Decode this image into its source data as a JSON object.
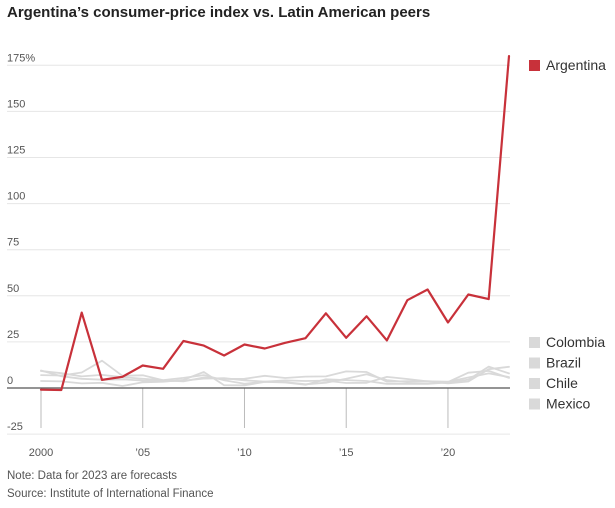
{
  "title": "Argentina’s consumer-price index vs. Latin American peers",
  "note": "Note: Data for 2023 are forecasts",
  "source": "Source: Institute of International Finance",
  "colors": {
    "highlight": "#c8313a",
    "peer": "#d9d9d9",
    "grid": "#e6e6e6",
    "zero": "#555555"
  },
  "chart_data": {
    "type": "line",
    "title": "Argentina’s consumer-price index vs. Latin American peers",
    "xlabel": "",
    "ylabel": "",
    "xlim": [
      2000,
      2023
    ],
    "ylim": [
      -25,
      180
    ],
    "x": [
      2000,
      2001,
      2002,
      2003,
      2004,
      2005,
      2006,
      2007,
      2008,
      2009,
      2010,
      2011,
      2012,
      2013,
      2014,
      2015,
      2016,
      2017,
      2018,
      2019,
      2020,
      2021,
      2022,
      2023
    ],
    "x_ticks": [
      {
        "value": 2000,
        "label": "2000"
      },
      {
        "value": 2005,
        "label": "’05"
      },
      {
        "value": 2010,
        "label": "’10"
      },
      {
        "value": 2015,
        "label": "’15"
      },
      {
        "value": 2020,
        "label": "’20"
      }
    ],
    "y_ticks": [
      {
        "value": 175,
        "label": "175%"
      },
      {
        "value": 150,
        "label": "150"
      },
      {
        "value": 125,
        "label": "125"
      },
      {
        "value": 100,
        "label": "100"
      },
      {
        "value": 75,
        "label": "75"
      },
      {
        "value": 50,
        "label": "50"
      },
      {
        "value": 25,
        "label": "25"
      },
      {
        "value": 0,
        "label": "0"
      },
      {
        "value": -25,
        "label": "-25"
      }
    ],
    "grid": true,
    "legend_position": "right",
    "series": [
      {
        "name": "Colombia",
        "highlight": false,
        "values": [
          9.2,
          8.0,
          6.3,
          7.1,
          5.9,
          5.0,
          4.3,
          5.5,
          7.0,
          4.2,
          2.3,
          3.4,
          3.2,
          2.0,
          2.9,
          5.0,
          7.5,
          4.3,
          3.2,
          3.5,
          2.5,
          3.5,
          10.2,
          11.5
        ]
      },
      {
        "name": "Brazil",
        "highlight": false,
        "values": [
          7.0,
          6.8,
          8.4,
          14.8,
          6.6,
          6.9,
          4.2,
          3.6,
          5.7,
          4.9,
          5.0,
          6.6,
          5.4,
          6.2,
          6.3,
          9.0,
          8.7,
          3.4,
          3.7,
          3.7,
          3.2,
          8.3,
          9.3,
          5.5
        ]
      },
      {
        "name": "Chile",
        "highlight": false,
        "values": [
          3.8,
          3.6,
          2.5,
          2.8,
          1.1,
          3.1,
          3.4,
          4.4,
          8.7,
          1.5,
          1.4,
          3.3,
          3.0,
          1.8,
          4.7,
          4.3,
          3.8,
          2.2,
          2.3,
          2.3,
          3.0,
          4.5,
          11.6,
          7.9
        ]
      },
      {
        "name": "Mexico",
        "highlight": false,
        "values": [
          9.5,
          6.4,
          5.0,
          4.5,
          4.7,
          4.0,
          3.6,
          4.0,
          5.1,
          5.3,
          4.2,
          3.4,
          4.1,
          3.8,
          4.0,
          2.7,
          2.8,
          6.0,
          4.9,
          3.6,
          3.4,
          5.7,
          7.9,
          5.9
        ]
      },
      {
        "name": "Argentina",
        "highlight": true,
        "values": [
          -0.9,
          -1.1,
          40.9,
          4.4,
          6.1,
          12.2,
          10.4,
          25.5,
          23.0,
          17.6,
          23.6,
          21.4,
          24.5,
          27.0,
          40.5,
          27.2,
          38.9,
          25.8,
          47.6,
          53.4,
          35.5,
          50.7,
          48.2,
          180
        ]
      }
    ]
  }
}
